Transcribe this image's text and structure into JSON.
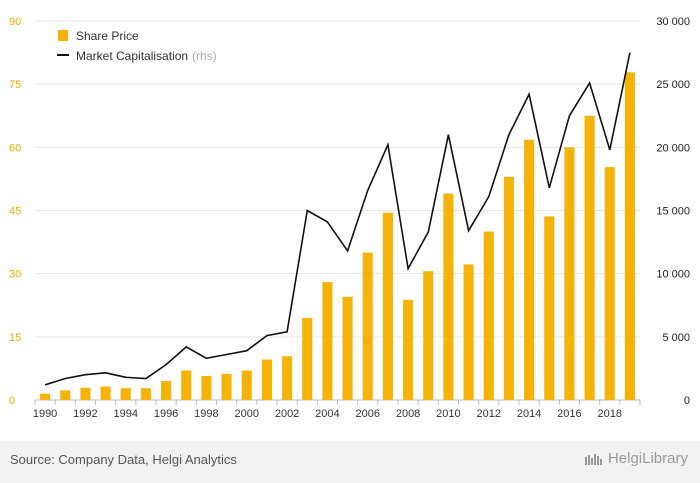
{
  "chart_data": {
    "type": "bar+line",
    "x": [
      1990,
      1991,
      1992,
      1993,
      1994,
      1995,
      1996,
      1997,
      1998,
      1999,
      2000,
      2001,
      2002,
      2003,
      2004,
      2005,
      2006,
      2007,
      2008,
      2009,
      2010,
      2011,
      2012,
      2013,
      2014,
      2015,
      2016,
      2017,
      2018,
      2019
    ],
    "x_tick_labels": [
      "1990",
      "1992",
      "1994",
      "1996",
      "1998",
      "2000",
      "2002",
      "2004",
      "2006",
      "2008",
      "2010",
      "2012",
      "2014",
      "2016",
      "2018"
    ],
    "series": [
      {
        "name": "Share Price",
        "kind": "bar",
        "axis": "left",
        "color": "#f5b30a",
        "values": [
          1.5,
          2.3,
          2.9,
          3.2,
          2.8,
          2.8,
          4.5,
          7.0,
          5.7,
          6.2,
          7.0,
          9.6,
          10.4,
          19.5,
          28.0,
          24.5,
          35.0,
          44.5,
          23.8,
          30.6,
          49.0,
          32.2,
          40.0,
          53.0,
          61.8,
          43.6,
          60.0,
          67.5,
          55.3,
          77.8
        ]
      },
      {
        "name": "Market Capitalisation",
        "name_suffix": "(rhs)",
        "kind": "line",
        "axis": "right",
        "color": "#111111",
        "values": [
          1200,
          1700,
          2000,
          2150,
          1800,
          1700,
          2800,
          4200,
          3300,
          3600,
          3900,
          5100,
          5400,
          15000,
          14100,
          11800,
          16600,
          20200,
          10400,
          13300,
          21000,
          13400,
          16100,
          21000,
          24200,
          16800,
          22500,
          25100,
          19800,
          27500
        ]
      }
    ],
    "yleft": {
      "ticks": [
        "0",
        "15",
        "30",
        "45",
        "60",
        "75",
        "90"
      ],
      "ylim": [
        0,
        90
      ]
    },
    "yright": {
      "ticks": [
        "0",
        "5 000",
        "10 000",
        "15 000",
        "20 000",
        "25 000",
        "30 000"
      ],
      "ylim": [
        0,
        30000
      ]
    },
    "grid": "horizontal",
    "legend_position": "top-left"
  },
  "footer": {
    "source": "Source: Company Data, Helgi Analytics",
    "logo_text": "HelgiLibrary"
  }
}
